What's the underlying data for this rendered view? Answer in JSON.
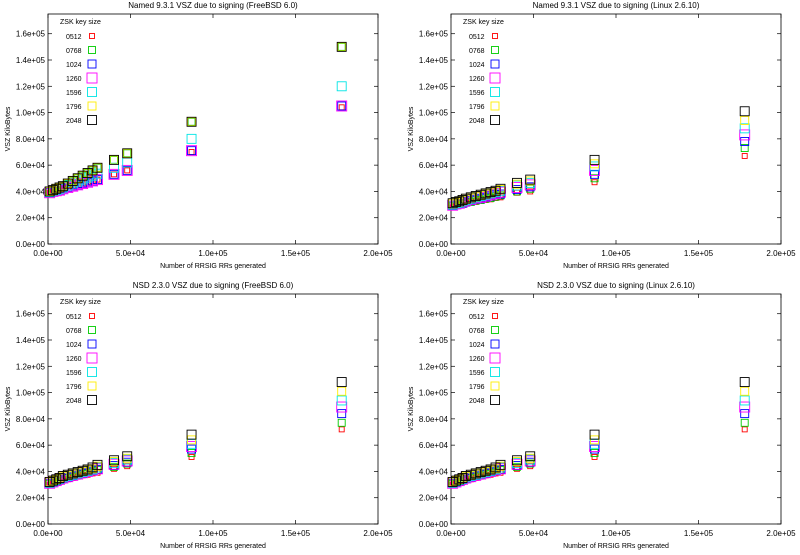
{
  "chart_data": [
    {
      "type": "scatter",
      "title": "Named 9.3.1 VSZ due to signing (FreeBSD 6.0)",
      "xlabel": "Number of RRSIG RRs generated",
      "ylabel": "VSZ KiloBytes",
      "xlim": [
        0,
        200000
      ],
      "ylim": [
        0,
        175000
      ],
      "xticks": [
        0,
        50000,
        100000,
        150000,
        200000
      ],
      "xtick_labels": [
        "0.0e+00",
        "5.0e+04",
        "1.0e+05",
        "1.5e+05",
        "2.0e+05"
      ],
      "yticks": [
        0,
        20000,
        40000,
        60000,
        80000,
        100000,
        120000,
        140000,
        160000
      ],
      "ytick_labels": [
        "0.0e+00",
        "2.0e+04",
        "4.0e+04",
        "6.0e+04",
        "8.0e+04",
        "1.0e+05",
        "1.2e+05",
        "1.4e+05",
        "1.6e+05"
      ],
      "legend_title": "ZSK key size",
      "legend_position": "top-left",
      "x": [
        1000,
        3000,
        5000,
        7000,
        9000,
        12000,
        15000,
        18000,
        21000,
        24000,
        27000,
        30000,
        40000,
        48000,
        87000,
        178000
      ],
      "series": [
        {
          "name": "0512",
          "color": "#ff0000",
          "values": [
            39000,
            40000,
            40500,
            41000,
            42000,
            43000,
            44000,
            45000,
            46000,
            47000,
            48000,
            49000,
            53000,
            56000,
            70000,
            104000
          ]
        },
        {
          "name": "0768",
          "color": "#00cc00",
          "values": [
            40000,
            41000,
            42000,
            43000,
            44000,
            46000,
            48000,
            50000,
            52000,
            54000,
            56000,
            58000,
            64000,
            69000,
            93000,
            150000
          ]
        },
        {
          "name": "1024",
          "color": "#0000ff",
          "values": [
            39000,
            40000,
            40500,
            41000,
            42000,
            43000,
            44000,
            45000,
            46000,
            47000,
            48000,
            49000,
            53000,
            56000,
            71000,
            105000
          ]
        },
        {
          "name": "1260",
          "color": "#ff00ff",
          "values": [
            39000,
            40000,
            40500,
            41000,
            42000,
            43000,
            44000,
            45000,
            46000,
            47000,
            48000,
            49000,
            53000,
            56000,
            71000,
            105000
          ]
        },
        {
          "name": "1596",
          "color": "#00e5e5",
          "values": [
            39500,
            40500,
            41000,
            42000,
            43000,
            44500,
            46000,
            47500,
            49000,
            50500,
            52000,
            53500,
            58000,
            62000,
            80000,
            120000
          ]
        },
        {
          "name": "1796",
          "color": "#ffee00",
          "values": [
            40000,
            41000,
            42000,
            43000,
            44000,
            46000,
            48000,
            50000,
            52000,
            54000,
            56000,
            58000,
            64000,
            69000,
            93000,
            150000
          ]
        },
        {
          "name": "2048",
          "color": "#000000",
          "values": [
            40000,
            41000,
            42000,
            43000,
            44000,
            46000,
            48000,
            50000,
            52000,
            54000,
            56000,
            58000,
            64000,
            69000,
            93000,
            150000
          ]
        }
      ]
    },
    {
      "type": "scatter",
      "title": "Named 9.3.1 VSZ due to signing (Linux 2.6.10)",
      "xlabel": "Number of RRSIG RRs generated",
      "ylabel": "VSZ KiloBytes",
      "xlim": [
        0,
        200000
      ],
      "ylim": [
        0,
        175000
      ],
      "xticks": [
        0,
        50000,
        100000,
        150000,
        200000
      ],
      "xtick_labels": [
        "0.0e+00",
        "5.0e+04",
        "1.0e+05",
        "1.5e+05",
        "2.0e+05"
      ],
      "yticks": [
        0,
        20000,
        40000,
        60000,
        80000,
        100000,
        120000,
        140000,
        160000
      ],
      "ytick_labels": [
        "0.0e+00",
        "2.0e+04",
        "4.0e+04",
        "6.0e+04",
        "8.0e+04",
        "1.0e+05",
        "1.2e+05",
        "1.4e+05",
        "1.6e+05"
      ],
      "legend_title": "ZSK key size",
      "legend_position": "top-left",
      "x": [
        1000,
        3000,
        5000,
        7000,
        9000,
        12000,
        15000,
        18000,
        21000,
        24000,
        27000,
        30000,
        40000,
        48000,
        87000,
        178000
      ],
      "series": [
        {
          "name": "0512",
          "color": "#ff0000",
          "values": [
            28000,
            29000,
            29500,
            30000,
            31000,
            31500,
            32000,
            33000,
            33500,
            34000,
            35000,
            35500,
            39000,
            40000,
            47000,
            67000
          ]
        },
        {
          "name": "0768",
          "color": "#00cc00",
          "values": [
            28500,
            29500,
            30000,
            30500,
            31500,
            32000,
            33000,
            33500,
            34500,
            35000,
            36000,
            37000,
            40000,
            42000,
            50000,
            73000
          ]
        },
        {
          "name": "1024",
          "color": "#0000ff",
          "values": [
            29000,
            30000,
            30500,
            31000,
            32000,
            33000,
            34000,
            34500,
            35500,
            36500,
            37500,
            38000,
            41500,
            43500,
            53000,
            78000
          ]
        },
        {
          "name": "1260",
          "color": "#ff00ff",
          "values": [
            29500,
            30500,
            31000,
            32000,
            33000,
            34000,
            35000,
            35500,
            36500,
            37500,
            38500,
            39500,
            43000,
            45000,
            56000,
            83000
          ]
        },
        {
          "name": "1596",
          "color": "#00e5e5",
          "values": [
            30000,
            31000,
            31500,
            32500,
            33500,
            34500,
            35500,
            36500,
            37500,
            38500,
            39500,
            40500,
            44500,
            46500,
            59000,
            88000
          ]
        },
        {
          "name": "1796",
          "color": "#ffee00",
          "values": [
            30500,
            31500,
            32000,
            33000,
            34000,
            35000,
            36000,
            37000,
            38000,
            39000,
            40000,
            41500,
            45500,
            48000,
            61000,
            94000
          ]
        },
        {
          "name": "2048",
          "color": "#000000",
          "values": [
            31000,
            32000,
            32500,
            33500,
            34500,
            35500,
            36500,
            37500,
            38500,
            39500,
            40500,
            42000,
            46500,
            49000,
            64000,
            101000
          ]
        }
      ]
    },
    {
      "type": "scatter",
      "title": "NSD 2.3.0 VSZ due to signing (FreeBSD 6.0)",
      "xlabel": "Number of RRSIG RRs generated",
      "ylabel": "VSZ KiloBytes",
      "xlim": [
        0,
        200000
      ],
      "ylim": [
        0,
        175000
      ],
      "xticks": [
        0,
        50000,
        100000,
        150000,
        200000
      ],
      "xtick_labels": [
        "0.0e+00",
        "5.0e+04",
        "1.0e+05",
        "1.5e+05",
        "2.0e+05"
      ],
      "yticks": [
        0,
        20000,
        40000,
        60000,
        80000,
        100000,
        120000,
        140000,
        160000
      ],
      "ytick_labels": [
        "0.0e+00",
        "2.0e+04",
        "4.0e+04",
        "6.0e+04",
        "8.0e+04",
        "1.0e+05",
        "1.2e+05",
        "1.4e+05",
        "1.6e+05"
      ],
      "legend_title": "ZSK key size",
      "legend_position": "top-left",
      "x": [
        1000,
        3000,
        5000,
        7000,
        9000,
        12000,
        15000,
        18000,
        21000,
        24000,
        27000,
        30000,
        40000,
        48000,
        87000,
        178000
      ],
      "series": [
        {
          "name": "0512",
          "color": "#ff0000",
          "values": [
            30000,
            31000,
            31500,
            32000,
            33000,
            34000,
            35000,
            36000,
            37000,
            37500,
            38500,
            39000,
            42000,
            44000,
            51000,
            72000
          ]
        },
        {
          "name": "0768",
          "color": "#00cc00",
          "values": [
            30500,
            31500,
            32000,
            33000,
            34000,
            35000,
            36000,
            37000,
            38000,
            39000,
            40000,
            41000,
            43500,
            46000,
            54000,
            77000
          ]
        },
        {
          "name": "1024",
          "color": "#0000ff",
          "values": [
            31000,
            32000,
            32500,
            33500,
            34500,
            35500,
            36500,
            37500,
            38500,
            39500,
            40500,
            41500,
            44500,
            47000,
            57000,
            84000
          ]
        },
        {
          "name": "1260",
          "color": "#ff00ff",
          "values": [
            31000,
            32000,
            33000,
            34000,
            35000,
            36000,
            37000,
            38000,
            39000,
            40000,
            41000,
            42000,
            45500,
            48000,
            59000,
            89000
          ]
        },
        {
          "name": "1596",
          "color": "#00e5e5",
          "values": [
            31500,
            32500,
            33500,
            34500,
            35500,
            36500,
            37500,
            38500,
            39500,
            40500,
            41500,
            43000,
            46500,
            49000,
            61000,
            94000
          ]
        },
        {
          "name": "1796",
          "color": "#ffee00",
          "values": [
            32000,
            33000,
            34000,
            35000,
            36000,
            37000,
            38000,
            39000,
            40000,
            41000,
            42000,
            44000,
            47500,
            50000,
            64000,
            101000
          ]
        },
        {
          "name": "2048",
          "color": "#000000",
          "values": [
            32000,
            33000,
            34000,
            35000,
            36500,
            37500,
            38500,
            39500,
            40500,
            41500,
            43000,
            45000,
            48500,
            51500,
            68000,
            108000
          ]
        }
      ]
    },
    {
      "type": "scatter",
      "title": "NSD 2.3.0 VSZ due to signing (Linux 2.6.10)",
      "xlabel": "Number of RRSIG RRs generated",
      "ylabel": "VSZ KiloBytes",
      "xlim": [
        0,
        200000
      ],
      "ylim": [
        0,
        175000
      ],
      "xticks": [
        0,
        50000,
        100000,
        150000,
        200000
      ],
      "xtick_labels": [
        "0.0e+00",
        "5.0e+04",
        "1.0e+05",
        "1.5e+05",
        "2.0e+05"
      ],
      "yticks": [
        0,
        20000,
        40000,
        60000,
        80000,
        100000,
        120000,
        140000,
        160000
      ],
      "ytick_labels": [
        "0.0e+00",
        "2.0e+04",
        "4.0e+04",
        "6.0e+04",
        "8.0e+04",
        "1.0e+05",
        "1.2e+05",
        "1.4e+05",
        "1.6e+05"
      ],
      "legend_title": "ZSK key size",
      "legend_position": "top-left",
      "x": [
        1000,
        3000,
        5000,
        7000,
        9000,
        12000,
        15000,
        18000,
        21000,
        24000,
        27000,
        30000,
        40000,
        48000,
        87000,
        178000
      ],
      "series": [
        {
          "name": "0512",
          "color": "#ff0000",
          "values": [
            30000,
            31000,
            31500,
            32000,
            33000,
            34000,
            35000,
            36000,
            37000,
            37500,
            38500,
            39000,
            42000,
            44000,
            51000,
            72000
          ]
        },
        {
          "name": "0768",
          "color": "#00cc00",
          "values": [
            30500,
            31500,
            32000,
            33000,
            34000,
            35000,
            36000,
            37000,
            38000,
            39000,
            40000,
            41000,
            43500,
            46000,
            54000,
            77000
          ]
        },
        {
          "name": "1024",
          "color": "#0000ff",
          "values": [
            31000,
            32000,
            32500,
            33500,
            34500,
            35500,
            36500,
            37500,
            38500,
            39500,
            40500,
            41500,
            44500,
            47000,
            57000,
            84000
          ]
        },
        {
          "name": "1260",
          "color": "#ff00ff",
          "values": [
            31000,
            32000,
            33000,
            34000,
            35000,
            36000,
            37000,
            38000,
            39000,
            40000,
            41000,
            42000,
            45500,
            48000,
            59000,
            89000
          ]
        },
        {
          "name": "1596",
          "color": "#00e5e5",
          "values": [
            31500,
            32500,
            33500,
            34500,
            35500,
            36500,
            37500,
            38500,
            39500,
            40500,
            41500,
            43000,
            46500,
            49000,
            61000,
            94000
          ]
        },
        {
          "name": "1796",
          "color": "#ffee00",
          "values": [
            32000,
            33000,
            34000,
            35000,
            36000,
            37000,
            38000,
            39000,
            40000,
            41000,
            42000,
            44000,
            47500,
            50000,
            64000,
            101000
          ]
        },
        {
          "name": "2048",
          "color": "#000000",
          "values": [
            32000,
            33000,
            34000,
            35000,
            36500,
            37500,
            38500,
            39500,
            40500,
            41500,
            43000,
            45000,
            48500,
            51500,
            68000,
            108000
          ]
        }
      ]
    }
  ]
}
